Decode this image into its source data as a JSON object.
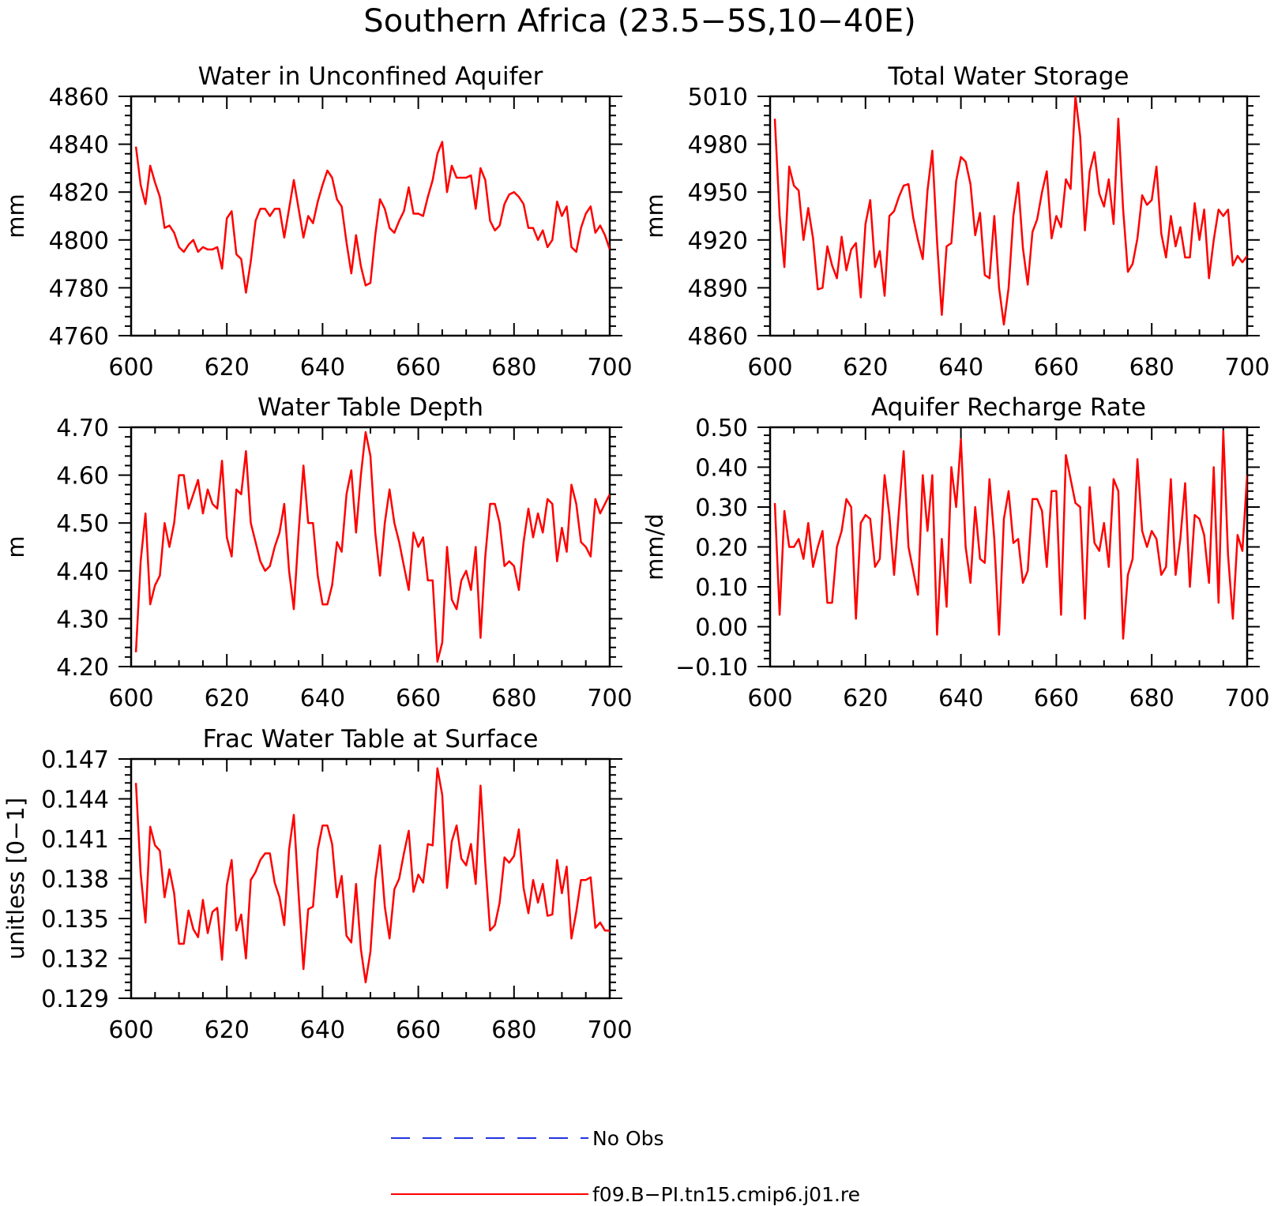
{
  "title": "Southern Africa (23.5−5S,10−40E)",
  "legend": [
    {
      "label": "No Obs",
      "color": "#2233dd",
      "dash": true
    },
    {
      "label": "f09.B−PI.tn15.cmip6.j01.re",
      "color": "#ff0000",
      "dash": false
    }
  ],
  "chart_data": [
    {
      "type": "line",
      "title": "Water in Unconfined Aquifer",
      "ylabel": "mm",
      "xlim": [
        600,
        700
      ],
      "ylim": [
        4760,
        4860
      ],
      "xticks": [
        "600",
        "620",
        "640",
        "660",
        "680",
        "700"
      ],
      "yticks": [
        "4760",
        "4780",
        "4800",
        "4820",
        "4840",
        "4860"
      ],
      "x": [
        601,
        602,
        603,
        604,
        605,
        606,
        607,
        608,
        609,
        610,
        611,
        612,
        613,
        614,
        615,
        616,
        617,
        618,
        619,
        620,
        621,
        622,
        623,
        624,
        625,
        626,
        627,
        628,
        629,
        630,
        631,
        632,
        633,
        634,
        635,
        636,
        637,
        638,
        639,
        640,
        641,
        642,
        643,
        644,
        645,
        646,
        647,
        648,
        649,
        650,
        651,
        652,
        653,
        654,
        655,
        656,
        657,
        658,
        659,
        660,
        661,
        662,
        663,
        664,
        665,
        666,
        667,
        668,
        669,
        670,
        671,
        672,
        673,
        674,
        675,
        676,
        677,
        678,
        679,
        680,
        681,
        682,
        683,
        684,
        685,
        686,
        687,
        688,
        689,
        690,
        691,
        692,
        693,
        694,
        695,
        696,
        697,
        698,
        699,
        700
      ],
      "series": [
        {
          "color": "#ff0000",
          "values": [
            4839,
            4823,
            4815,
            4831,
            4824,
            4818,
            4805,
            4806,
            4803,
            4797,
            4795,
            4798,
            4800,
            4795,
            4797,
            4796,
            4796,
            4797,
            4788,
            4809,
            4812,
            4794,
            4792,
            4778,
            4791,
            4808,
            4813,
            4813,
            4810,
            4813,
            4813,
            4801,
            4813,
            4825,
            4813,
            4801,
            4810,
            4807,
            4816,
            4823,
            4829,
            4826,
            4817,
            4814,
            4799,
            4786,
            4802,
            4789,
            4781,
            4782,
            4802,
            4817,
            4813,
            4805,
            4803,
            4808,
            4812,
            4822,
            4811,
            4811,
            4810,
            4818,
            4825,
            4836,
            4841,
            4820,
            4831,
            4826,
            4826,
            4826,
            4827,
            4813,
            4830,
            4825,
            4808,
            4804,
            4806,
            4815,
            4819,
            4820,
            4818,
            4815,
            4805,
            4805,
            4800,
            4804,
            4797,
            4800,
            4816,
            4810,
            4814,
            4797,
            4795,
            4805,
            4811,
            4814,
            4803,
            4806,
            4802,
            4796
          ]
        }
      ]
    },
    {
      "type": "line",
      "title": "Total Water Storage",
      "ylabel": "mm",
      "xlim": [
        600,
        700
      ],
      "ylim": [
        4860,
        5010
      ],
      "xticks": [
        "600",
        "620",
        "640",
        "660",
        "680",
        "700"
      ],
      "yticks": [
        "4860",
        "4890",
        "4920",
        "4950",
        "4980",
        "5010"
      ],
      "x": [
        601,
        602,
        603,
        604,
        605,
        606,
        607,
        608,
        609,
        610,
        611,
        612,
        613,
        614,
        615,
        616,
        617,
        618,
        619,
        620,
        621,
        622,
        623,
        624,
        625,
        626,
        627,
        628,
        629,
        630,
        631,
        632,
        633,
        634,
        635,
        636,
        637,
        638,
        639,
        640,
        641,
        642,
        643,
        644,
        645,
        646,
        647,
        648,
        649,
        650,
        651,
        652,
        653,
        654,
        655,
        656,
        657,
        658,
        659,
        660,
        661,
        662,
        663,
        664,
        665,
        666,
        667,
        668,
        669,
        670,
        671,
        672,
        673,
        674,
        675,
        676,
        677,
        678,
        679,
        680,
        681,
        682,
        683,
        684,
        685,
        686,
        687,
        688,
        689,
        690,
        691,
        692,
        693,
        694,
        695,
        696,
        697,
        698,
        699,
        700
      ],
      "series": [
        {
          "color": "#ff0000",
          "values": [
            4996,
            4935,
            4903,
            4966,
            4954,
            4951,
            4920,
            4940,
            4921,
            4889,
            4890,
            4916,
            4904,
            4896,
            4922,
            4901,
            4914,
            4918,
            4884,
            4930,
            4945,
            4903,
            4913,
            4885,
            4935,
            4938,
            4947,
            4954,
            4955,
            4934,
            4920,
            4908,
            4951,
            4976,
            4919,
            4873,
            4916,
            4918,
            4957,
            4972,
            4969,
            4955,
            4923,
            4937,
            4898,
            4896,
            4935,
            4890,
            4867,
            4890,
            4935,
            4956,
            4915,
            4892,
            4925,
            4933,
            4950,
            4963,
            4921,
            4935,
            4928,
            4958,
            4952,
            5010,
            4985,
            4926,
            4963,
            4975,
            4949,
            4941,
            4958,
            4930,
            4996,
            4939,
            4900,
            4905,
            4921,
            4948,
            4942,
            4945,
            4966,
            4924,
            4909,
            4935,
            4916,
            4928,
            4909,
            4909,
            4943,
            4920,
            4939,
            4896,
            4920,
            4939,
            4935,
            4939,
            4904,
            4910,
            4906,
            4910
          ]
        }
      ]
    },
    {
      "type": "line",
      "title": "Water Table Depth",
      "ylabel": "m",
      "xlim": [
        600,
        700
      ],
      "ylim": [
        4.2,
        4.7
      ],
      "xticks": [
        "600",
        "620",
        "640",
        "660",
        "680",
        "700"
      ],
      "yticks": [
        "4.20",
        "4.30",
        "4.40",
        "4.50",
        "4.60",
        "4.70"
      ],
      "x": [
        601,
        602,
        603,
        604,
        605,
        606,
        607,
        608,
        609,
        610,
        611,
        612,
        613,
        614,
        615,
        616,
        617,
        618,
        619,
        620,
        621,
        622,
        623,
        624,
        625,
        626,
        627,
        628,
        629,
        630,
        631,
        632,
        633,
        634,
        635,
        636,
        637,
        638,
        639,
        640,
        641,
        642,
        643,
        644,
        645,
        646,
        647,
        648,
        649,
        650,
        651,
        652,
        653,
        654,
        655,
        656,
        657,
        658,
        659,
        660,
        661,
        662,
        663,
        664,
        665,
        666,
        667,
        668,
        669,
        670,
        671,
        672,
        673,
        674,
        675,
        676,
        677,
        678,
        679,
        680,
        681,
        682,
        683,
        684,
        685,
        686,
        687,
        688,
        689,
        690,
        691,
        692,
        693,
        694,
        695,
        696,
        697,
        698,
        699,
        700
      ],
      "series": [
        {
          "color": "#ff0000",
          "values": [
            4.23,
            4.42,
            4.52,
            4.33,
            4.37,
            4.39,
            4.5,
            4.45,
            4.5,
            4.6,
            4.6,
            4.53,
            4.56,
            4.59,
            4.52,
            4.57,
            4.54,
            4.53,
            4.63,
            4.47,
            4.43,
            4.57,
            4.56,
            4.65,
            4.5,
            4.46,
            4.42,
            4.4,
            4.41,
            4.45,
            4.48,
            4.54,
            4.4,
            4.32,
            4.48,
            4.62,
            4.5,
            4.5,
            4.39,
            4.33,
            4.33,
            4.37,
            4.46,
            4.44,
            4.56,
            4.61,
            4.48,
            4.6,
            4.69,
            4.64,
            4.48,
            4.39,
            4.5,
            4.57,
            4.5,
            4.46,
            4.41,
            4.36,
            4.48,
            4.45,
            4.47,
            4.38,
            4.38,
            4.21,
            4.25,
            4.45,
            4.34,
            4.32,
            4.38,
            4.4,
            4.36,
            4.45,
            4.26,
            4.43,
            4.54,
            4.54,
            4.5,
            4.41,
            4.42,
            4.41,
            4.36,
            4.46,
            4.53,
            4.47,
            4.52,
            4.48,
            4.55,
            4.54,
            4.42,
            4.49,
            4.44,
            4.58,
            4.54,
            4.46,
            4.45,
            4.43,
            4.55,
            4.52,
            4.54,
            4.56
          ]
        }
      ]
    },
    {
      "type": "line",
      "title": "Aquifer Recharge Rate",
      "ylabel": "mm/d",
      "xlim": [
        600,
        700
      ],
      "ylim": [
        -0.1,
        0.5
      ],
      "xticks": [
        "600",
        "620",
        "640",
        "660",
        "680",
        "700"
      ],
      "yticks": [
        "−0.10",
        "0.00",
        "0.10",
        "0.20",
        "0.30",
        "0.40",
        "0.50"
      ],
      "x": [
        601,
        602,
        603,
        604,
        605,
        606,
        607,
        608,
        609,
        610,
        611,
        612,
        613,
        614,
        615,
        616,
        617,
        618,
        619,
        620,
        621,
        622,
        623,
        624,
        625,
        626,
        627,
        628,
        629,
        630,
        631,
        632,
        633,
        634,
        635,
        636,
        637,
        638,
        639,
        640,
        641,
        642,
        643,
        644,
        645,
        646,
        647,
        648,
        649,
        650,
        651,
        652,
        653,
        654,
        655,
        656,
        657,
        658,
        659,
        660,
        661,
        662,
        663,
        664,
        665,
        666,
        667,
        668,
        669,
        670,
        671,
        672,
        673,
        674,
        675,
        676,
        677,
        678,
        679,
        680,
        681,
        682,
        683,
        684,
        685,
        686,
        687,
        688,
        689,
        690,
        691,
        692,
        693,
        694,
        695,
        696,
        697,
        698,
        699,
        700
      ],
      "series": [
        {
          "color": "#ff0000",
          "values": [
            0.31,
            0.03,
            0.29,
            0.2,
            0.2,
            0.22,
            0.17,
            0.26,
            0.15,
            0.2,
            0.24,
            0.06,
            0.06,
            0.2,
            0.24,
            0.32,
            0.3,
            0.02,
            0.26,
            0.28,
            0.27,
            0.15,
            0.17,
            0.38,
            0.28,
            0.13,
            0.29,
            0.44,
            0.2,
            0.14,
            0.08,
            0.38,
            0.24,
            0.38,
            -0.02,
            0.22,
            0.05,
            0.4,
            0.3,
            0.47,
            0.2,
            0.11,
            0.3,
            0.17,
            0.16,
            0.37,
            0.22,
            -0.02,
            0.27,
            0.34,
            0.21,
            0.22,
            0.11,
            0.14,
            0.32,
            0.32,
            0.29,
            0.15,
            0.34,
            0.34,
            0.03,
            0.43,
            0.37,
            0.31,
            0.3,
            0.02,
            0.35,
            0.21,
            0.19,
            0.26,
            0.15,
            0.37,
            0.34,
            -0.03,
            0.13,
            0.17,
            0.42,
            0.24,
            0.2,
            0.24,
            0.22,
            0.13,
            0.15,
            0.37,
            0.13,
            0.22,
            0.36,
            0.1,
            0.28,
            0.27,
            0.23,
            0.11,
            0.4,
            0.06,
            0.49,
            0.18,
            0.02,
            0.23,
            0.19,
            0.38
          ]
        }
      ]
    },
    {
      "type": "line",
      "title": "Frac Water Table at Surface",
      "ylabel": "unitless [0−1]",
      "xlim": [
        600,
        700
      ],
      "ylim": [
        0.129,
        0.147
      ],
      "xticks": [
        "600",
        "620",
        "640",
        "660",
        "680",
        "700"
      ],
      "yticks": [
        "0.129",
        "0.132",
        "0.135",
        "0.138",
        "0.141",
        "0.144",
        "0.147"
      ],
      "x": [
        601,
        602,
        603,
        604,
        605,
        606,
        607,
        608,
        609,
        610,
        611,
        612,
        613,
        614,
        615,
        616,
        617,
        618,
        619,
        620,
        621,
        622,
        623,
        624,
        625,
        626,
        627,
        628,
        629,
        630,
        631,
        632,
        633,
        634,
        635,
        636,
        637,
        638,
        639,
        640,
        641,
        642,
        643,
        644,
        645,
        646,
        647,
        648,
        649,
        650,
        651,
        652,
        653,
        654,
        655,
        656,
        657,
        658,
        659,
        660,
        661,
        662,
        663,
        664,
        665,
        666,
        667,
        668,
        669,
        670,
        671,
        672,
        673,
        674,
        675,
        676,
        677,
        678,
        679,
        680,
        681,
        682,
        683,
        684,
        685,
        686,
        687,
        688,
        689,
        690,
        691,
        692,
        693,
        694,
        695,
        696,
        697,
        698,
        699,
        700
      ],
      "series": [
        {
          "color": "#ff0000",
          "values": [
            0.1452,
            0.1384,
            0.1347,
            0.1419,
            0.1405,
            0.1401,
            0.1366,
            0.1387,
            0.1369,
            0.1331,
            0.1331,
            0.1356,
            0.1342,
            0.1336,
            0.1364,
            0.1339,
            0.1355,
            0.1358,
            0.1319,
            0.1375,
            0.1394,
            0.1341,
            0.1353,
            0.132,
            0.1379,
            0.1385,
            0.1394,
            0.1399,
            0.1399,
            0.1377,
            0.1366,
            0.1345,
            0.1402,
            0.1428,
            0.1368,
            0.1312,
            0.1357,
            0.1359,
            0.1402,
            0.142,
            0.142,
            0.1406,
            0.1366,
            0.1382,
            0.1337,
            0.1332,
            0.1376,
            0.1327,
            0.1302,
            0.1325,
            0.1379,
            0.1405,
            0.1359,
            0.1335,
            0.1372,
            0.138,
            0.1399,
            0.1416,
            0.137,
            0.1383,
            0.1377,
            0.1406,
            0.1405,
            0.1463,
            0.1443,
            0.1373,
            0.1408,
            0.142,
            0.1395,
            0.139,
            0.1406,
            0.1376,
            0.145,
            0.1392,
            0.1341,
            0.1345,
            0.1362,
            0.1396,
            0.1392,
            0.1397,
            0.1417,
            0.1373,
            0.1354,
            0.1379,
            0.1362,
            0.1376,
            0.1352,
            0.1353,
            0.1394,
            0.1369,
            0.1389,
            0.1335,
            0.1355,
            0.1379,
            0.1379,
            0.1381,
            0.1343,
            0.1347,
            0.1341,
            0.1341
          ]
        }
      ]
    }
  ]
}
